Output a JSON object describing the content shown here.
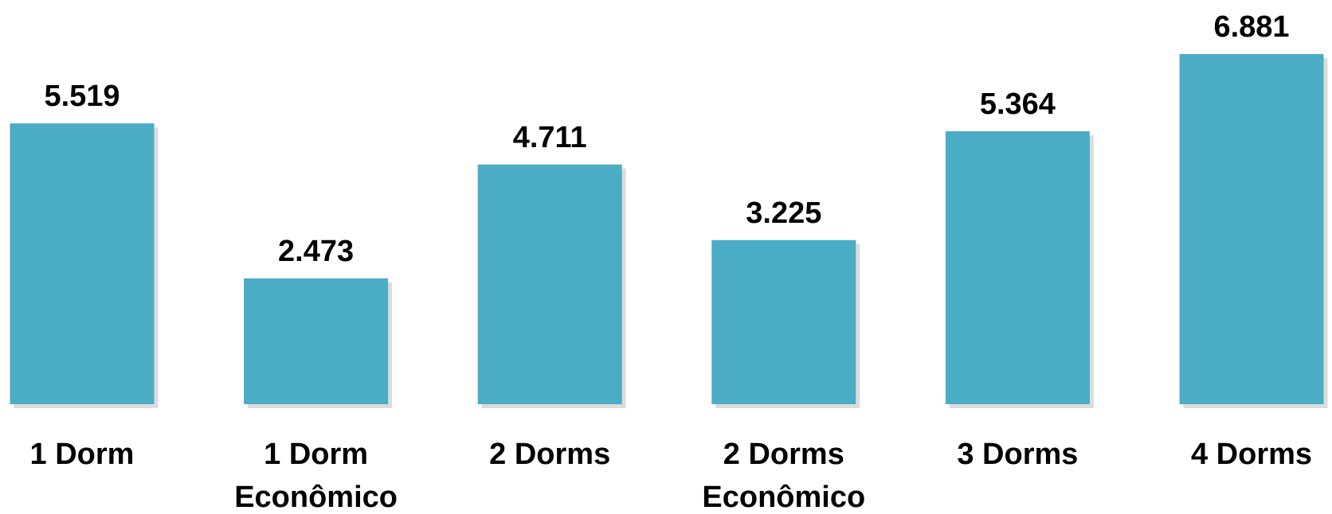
{
  "chart_data": {
    "type": "bar",
    "title": "",
    "xlabel": "",
    "ylabel": "",
    "categories": [
      [
        "1 Dorm"
      ],
      [
        "1 Dorm",
        "Econômico"
      ],
      [
        "2 Dorms"
      ],
      [
        "2 Dorms",
        "Econômico"
      ],
      [
        "3 Dorms"
      ],
      [
        "4 Dorms"
      ]
    ],
    "values": [
      5519,
      2473,
      4711,
      3225,
      5364,
      6881
    ],
    "value_labels": [
      "5.519",
      "2.473",
      "4.711",
      "3.225",
      "5.364",
      "6.881"
    ],
    "ylim": [
      0,
      6881
    ],
    "grid": false,
    "legend": "none",
    "bar_color": "#4BACC6",
    "shadow_color": "#BFBFBF"
  }
}
